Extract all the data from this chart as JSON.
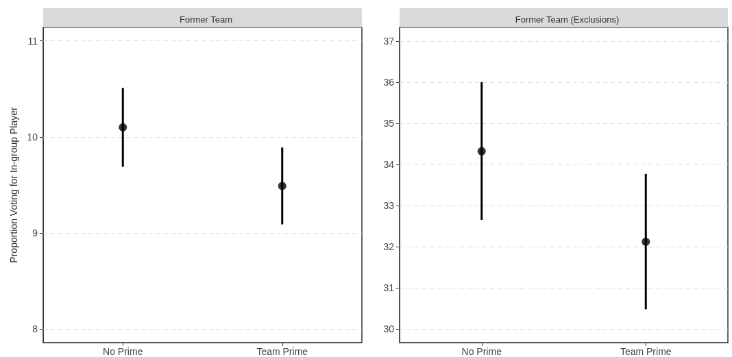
{
  "chart_data": [
    {
      "type": "scatter",
      "title": "Former Team",
      "ylabel": "Proportion Voting for In-group Player",
      "categories": [
        "No Prime",
        "Team Prime"
      ],
      "values": [
        10.1,
        9.49
      ],
      "errors": [
        [
          9.69,
          10.51
        ],
        [
          9.09,
          9.89
        ]
      ],
      "color": "#000000",
      "marker": "circle",
      "ylim": [
        7.86,
        11.14
      ],
      "yticks": [
        8,
        9,
        10,
        11
      ],
      "grid": "y"
    },
    {
      "type": "scatter",
      "title": "Former Team (Exclusions)",
      "categories": [
        "No Prime",
        "Team Prime"
      ],
      "values": [
        34.32,
        32.12
      ],
      "errors": [
        [
          32.65,
          36.0
        ],
        [
          30.48,
          33.77
        ]
      ],
      "color": "#000000",
      "marker": "circle",
      "ylim": [
        29.67,
        37.33
      ],
      "yticks": [
        30,
        31,
        32,
        33,
        34,
        35,
        36,
        37
      ],
      "grid": "y"
    }
  ]
}
